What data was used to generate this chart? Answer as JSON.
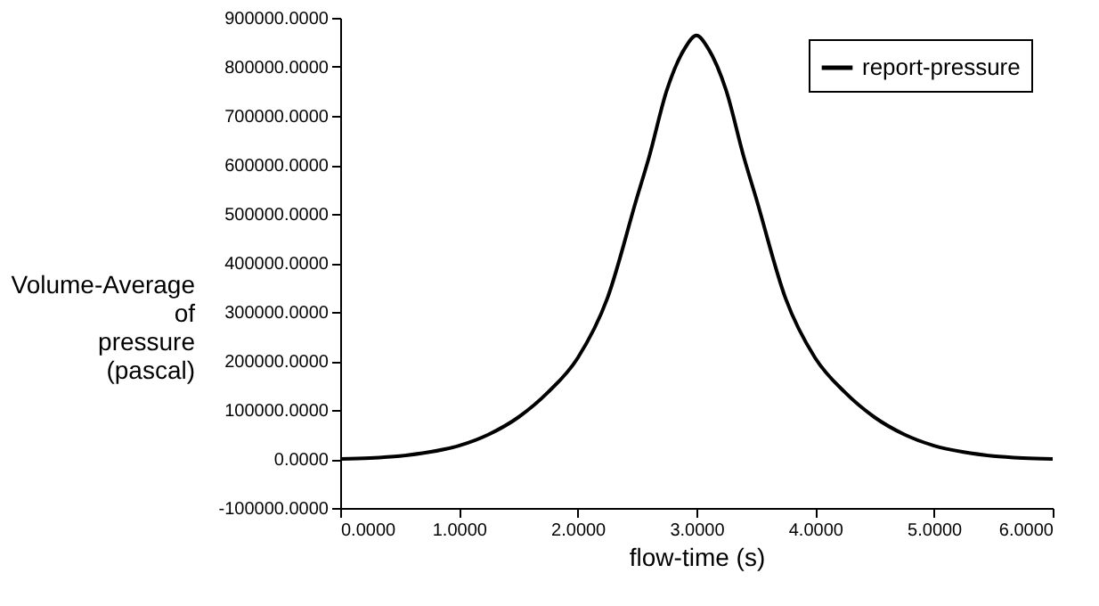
{
  "chart_data": {
    "type": "line",
    "xlabel": "flow-time (s)",
    "ylabel": "Volume-Average of pressure (pascal)",
    "x": [
      0,
      0.25,
      0.5,
      0.75,
      1.0,
      1.25,
      1.5,
      1.75,
      2.0,
      2.25,
      2.5,
      2.6,
      2.75,
      2.9,
      3.0,
      3.1,
      3.25,
      3.4,
      3.5,
      3.75,
      4.0,
      4.25,
      4.5,
      4.75,
      5.0,
      5.25,
      5.5,
      5.75,
      6.0
    ],
    "series": [
      {
        "name": "report-pressure",
        "color": "#000000",
        "values": [
          0,
          2000,
          6000,
          14000,
          27000,
          50000,
          85000,
          136000,
          206000,
          328000,
          534000,
          615000,
          752000,
          837000,
          864000,
          837000,
          752000,
          615000,
          534000,
          328000,
          206000,
          136000,
          85000,
          50000,
          27000,
          14000,
          6000,
          2000,
          0
        ]
      }
    ],
    "xlim": [
      0,
      6
    ],
    "xticks": [
      {
        "value": 0,
        "label": "0.0000"
      },
      {
        "value": 1,
        "label": "1.0000"
      },
      {
        "value": 2,
        "label": "2.0000"
      },
      {
        "value": 3,
        "label": "3.0000"
      },
      {
        "value": 4,
        "label": "4.0000"
      },
      {
        "value": 5,
        "label": "5.0000"
      },
      {
        "value": 6,
        "label": "6.0000"
      }
    ],
    "ylim": [
      -100000,
      900000
    ],
    "yticks": [
      {
        "value": -100000,
        "label": "-100000.0000"
      },
      {
        "value": 0,
        "label": "0.0000"
      },
      {
        "value": 100000,
        "label": "100000.0000"
      },
      {
        "value": 200000,
        "label": "200000.0000"
      },
      {
        "value": 300000,
        "label": "300000.0000"
      },
      {
        "value": 400000,
        "label": "400000.0000"
      },
      {
        "value": 500000,
        "label": "500000.0000"
      },
      {
        "value": 600000,
        "label": "600000.0000"
      },
      {
        "value": 700000,
        "label": "700000.0000"
      },
      {
        "value": 800000,
        "label": "800000.0000"
      },
      {
        "value": 900000,
        "label": "900000.0000"
      }
    ],
    "grid": false,
    "legend": "top right",
    "marker": "none",
    "line_style": "solid"
  }
}
